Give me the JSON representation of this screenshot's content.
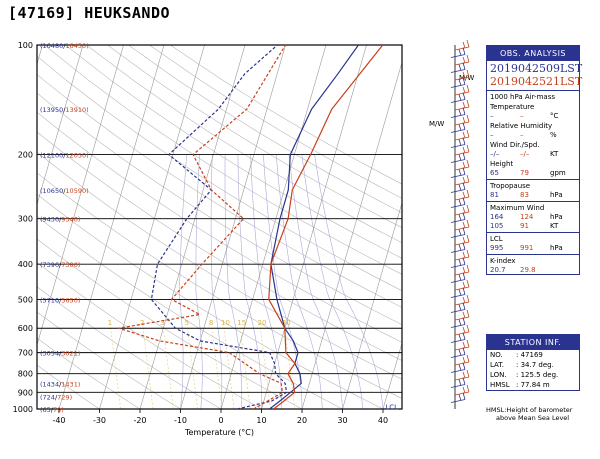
{
  "station_title": "[47169] HEUKSANDO",
  "chart_data": {
    "type": "line",
    "title": "[47169] HEUKSANDO",
    "xlabel": "Temperature (°C)",
    "ylabel": "",
    "xlim": [
      -45,
      45
    ],
    "x_ticks": [
      "-40",
      "-30",
      "-20",
      "-10",
      "0",
      "10",
      "20",
      "30",
      "40"
    ],
    "y_scale": "log",
    "ylim": [
      1000,
      100
    ],
    "pressure_levels": [
      "100",
      "200",
      "300",
      "400",
      "500",
      "600",
      "700",
      "800",
      "900",
      "1000"
    ],
    "height_labels": [
      {
        "p": 100,
        "a": "(16480",
        "b": "16450)"
      },
      {
        "p": 150,
        "a": "(13950",
        "b": "13910)"
      },
      {
        "p": 200,
        "a": "(12100",
        "b": "12050)"
      },
      {
        "p": 250,
        "a": "(10650",
        "b": "10590)"
      },
      {
        "p": 300,
        "a": "(9430",
        "b": "9340)"
      },
      {
        "p": 400,
        "a": "(7390",
        "b": "7300)"
      },
      {
        "p": 500,
        "a": "(5710",
        "b": "5650)"
      },
      {
        "p": 700,
        "a": "(3054",
        "b": "3021)"
      },
      {
        "p": 850,
        "a": "(1434",
        "b": "1431)"
      },
      {
        "p": 925,
        "a": "(724",
        "b": "729)"
      },
      {
        "p": 1000,
        "a": "(65",
        "b": "79)"
      }
    ],
    "mixing_ratio_labels": [
      "1",
      "2",
      "3",
      "5",
      "8",
      "10",
      "15",
      "20",
      "30"
    ],
    "lcl_label": "LCL",
    "series": [
      {
        "name": "2019042509LST",
        "kind": "temperature",
        "x": [
          12,
          14,
          16,
          18,
          17,
          15,
          15,
          13,
          10,
          6,
          2,
          1,
          1,
          -1,
          1,
          5,
          8
        ],
        "p": [
          1000,
          950,
          900,
          850,
          800,
          750,
          700,
          650,
          600,
          500,
          400,
          300,
          250,
          200,
          150,
          120,
          100
        ]
      },
      {
        "name": "2019042509LST",
        "kind": "dewpoint",
        "x": [
          4,
          12,
          15,
          14,
          11,
          10,
          8,
          -10,
          -17,
          -25,
          -26,
          -22,
          -18,
          -31,
          -22,
          -18,
          -12
        ],
        "p": [
          1000,
          950,
          900,
          850,
          800,
          750,
          700,
          650,
          600,
          500,
          400,
          300,
          250,
          200,
          150,
          120,
          100
        ]
      },
      {
        "name": "2019042521LST",
        "kind": "temperature",
        "x": [
          13,
          15,
          17,
          16,
          14,
          15,
          12,
          10,
          4,
          2,
          3,
          2,
          4,
          6,
          14
        ],
        "p": [
          1000,
          950,
          900,
          850,
          800,
          750,
          700,
          600,
          500,
          400,
          300,
          250,
          200,
          150,
          100
        ]
      },
      {
        "name": "2019042521LST",
        "kind": "dewpoint",
        "x": [
          8,
          11,
          14,
          13,
          7,
          -2,
          -20,
          -31,
          -12,
          -20,
          -15,
          -8,
          -18,
          -25,
          -15,
          -10
        ],
        "p": [
          1000,
          950,
          900,
          850,
          800,
          700,
          650,
          600,
          550,
          500,
          400,
          300,
          250,
          200,
          150,
          100
        ]
      }
    ]
  },
  "wind_label": "M/W",
  "obs": {
    "header": "OBS. ANALYSIS",
    "time1": "2019042509LST",
    "time2": "2019042521LST",
    "airmass_label": "1000 hPa Air-mass",
    "temperature_label": "Temperature",
    "temperature_1": "–",
    "temperature_2": "–",
    "temperature_unit": "°C",
    "rh_label": "Relative Humidity",
    "rh_1": "–",
    "rh_2": "–",
    "rh_unit": "%",
    "wind_label": "Wind Dir./Spd.",
    "wind_1": "–/–",
    "wind_2": "–/–",
    "wind_unit": "KT",
    "height_label": "Height",
    "height_1": "65",
    "height_2": "79",
    "height_unit": "gpm",
    "tropopause_label": "Tropopause",
    "tropopause_1": "81",
    "tropopause_2": "83",
    "tropopause_unit": "hPa",
    "maxwind_label": "Maximum Wind",
    "maxwind_p1": "164",
    "maxwind_p2": "124",
    "maxwind_p_unit": "hPa",
    "maxwind_s1": "105",
    "maxwind_s2": "91",
    "maxwind_s_unit": "KT",
    "lcl_label": "LCL",
    "lcl_1": "995",
    "lcl_2": "991",
    "lcl_unit": "hPa",
    "kindex_label": "K-index",
    "kindex_1": "20.7",
    "kindex_2": "29.8"
  },
  "station": {
    "header": "STATION INF.",
    "no_label": "NO.",
    "no_value": ": 47169",
    "lat_label": "LAT.",
    "lat_value": ": 34.7 deg.",
    "lon_label": "LON.",
    "lon_value": ": 125.5 deg.",
    "hmsl_label": "HMSL",
    "hmsl_value": ": 77.84 m"
  },
  "note_line1": "HMSL:Height of barometer",
  "note_line2": "above Mean Sea Level",
  "colors": {
    "series1": "#2a3390",
    "series2": "#c8401a",
    "dry_adiabat": "#b8b8b8",
    "moist_adiabat": "#b0a8d8",
    "mixing_ratio": "#e8c870"
  }
}
